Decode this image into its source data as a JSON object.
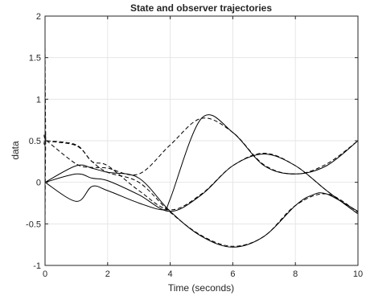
{
  "chart_data": {
    "type": "line",
    "title": "State and observer trajectories",
    "xlabel": "Time (seconds)",
    "ylabel": "data",
    "xlim": [
      0,
      10
    ],
    "ylim": [
      -1,
      2
    ],
    "grid": true,
    "legend": "none",
    "x_ticks": [
      0,
      2,
      4,
      6,
      8,
      10
    ],
    "y_ticks": [
      -1,
      -0.5,
      0,
      0.5,
      1,
      1.5,
      2
    ],
    "colors": {
      "line": "#000000",
      "grid": "#e6e6e6",
      "axis": "#262626"
    },
    "series": [
      {
        "style": "solid",
        "x": [
          0,
          1,
          1.5,
          2,
          3,
          4,
          5,
          6,
          7,
          8,
          8.5,
          9,
          10
        ],
        "y": [
          0,
          0.2,
          0.17,
          0.12,
          0.05,
          -0.35,
          -0.65,
          -0.78,
          -0.65,
          -0.28,
          -0.16,
          -0.14,
          -0.35
        ]
      },
      {
        "style": "solid",
        "x": [
          0,
          1,
          1.5,
          2,
          3,
          4,
          5,
          6,
          7,
          8,
          9,
          10
        ],
        "y": [
          0,
          0.1,
          0.05,
          0.02,
          -0.15,
          -0.35,
          -0.15,
          0.2,
          0.34,
          0.2,
          -0.1,
          -0.38
        ]
      },
      {
        "style": "solid",
        "x": [
          0,
          1,
          1.5,
          2,
          3,
          3.8,
          4,
          5,
          6,
          7,
          8,
          9,
          10
        ],
        "y": [
          0,
          -0.23,
          -0.05,
          -0.1,
          -0.25,
          -0.33,
          -0.2,
          0.77,
          0.6,
          0.2,
          0.1,
          0.2,
          0.5
        ]
      },
      {
        "style": "dashed",
        "x": [
          0,
          0.02,
          0.05,
          1,
          1.5,
          2,
          3,
          4,
          5,
          6,
          7,
          8,
          9,
          10
        ],
        "y": [
          1.7,
          0.55,
          0.5,
          0.44,
          0.25,
          0.12,
          0.0,
          -0.36,
          -0.64,
          -0.77,
          -0.65,
          -0.28,
          -0.14,
          -0.36
        ]
      },
      {
        "style": "dashed",
        "x": [
          0,
          0.02,
          0.05,
          1,
          1.5,
          2,
          3,
          4,
          5,
          6,
          7,
          8,
          9,
          10
        ],
        "y": [
          0.6,
          0.5,
          0.5,
          0.45,
          0.25,
          0.2,
          -0.1,
          -0.33,
          -0.14,
          0.2,
          0.35,
          0.2,
          -0.1,
          -0.38
        ]
      },
      {
        "style": "dashed",
        "x": [
          0,
          0.02,
          0.05,
          1,
          1.5,
          2,
          3,
          4,
          5,
          6,
          7,
          8,
          9,
          10
        ],
        "y": [
          -0.55,
          0.5,
          0.5,
          0.22,
          0.18,
          0.17,
          0.1,
          0.45,
          0.77,
          0.6,
          0.21,
          0.1,
          0.22,
          0.5
        ]
      }
    ]
  }
}
